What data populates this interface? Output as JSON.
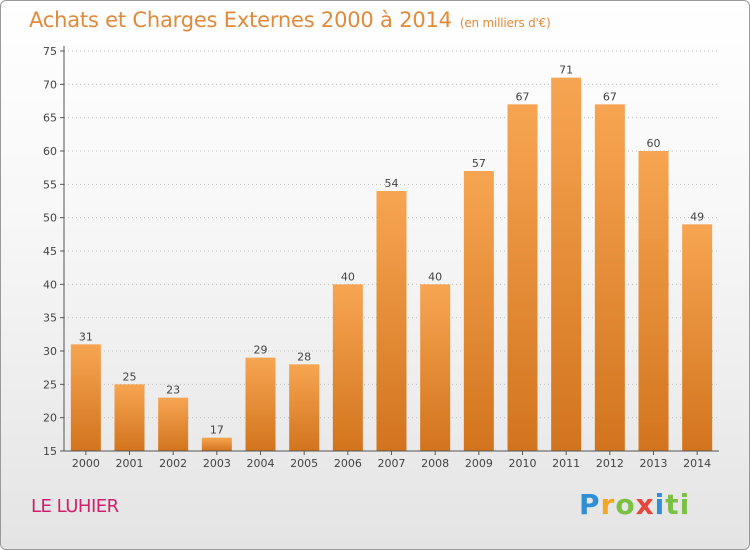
{
  "header": {
    "title": "Achats et Charges Externes 2000 à 2014",
    "subtitle": "(en milliers d'€)"
  },
  "footer": {
    "place": "LE LUHIER",
    "logo": [
      "P",
      "r",
      "o",
      "x",
      "i",
      "ti"
    ]
  },
  "colors": {
    "bar_top": "#f7a552",
    "bar_bottom": "#d2741d",
    "title": "#e08a3a",
    "place": "#d21f6b"
  },
  "chart_data": {
    "type": "bar",
    "categories": [
      "2000",
      "2001",
      "2002",
      "2003",
      "2004",
      "2005",
      "2006",
      "2007",
      "2008",
      "2009",
      "2010",
      "2011",
      "2012",
      "2013",
      "2014"
    ],
    "values": [
      31,
      25,
      23,
      17,
      29,
      28,
      40,
      54,
      40,
      57,
      67,
      71,
      67,
      60,
      49
    ],
    "ylim": [
      15,
      75
    ],
    "yticks": [
      15,
      20,
      25,
      30,
      35,
      40,
      45,
      50,
      55,
      60,
      65,
      70,
      75
    ],
    "grid": true,
    "data_labels": true
  }
}
